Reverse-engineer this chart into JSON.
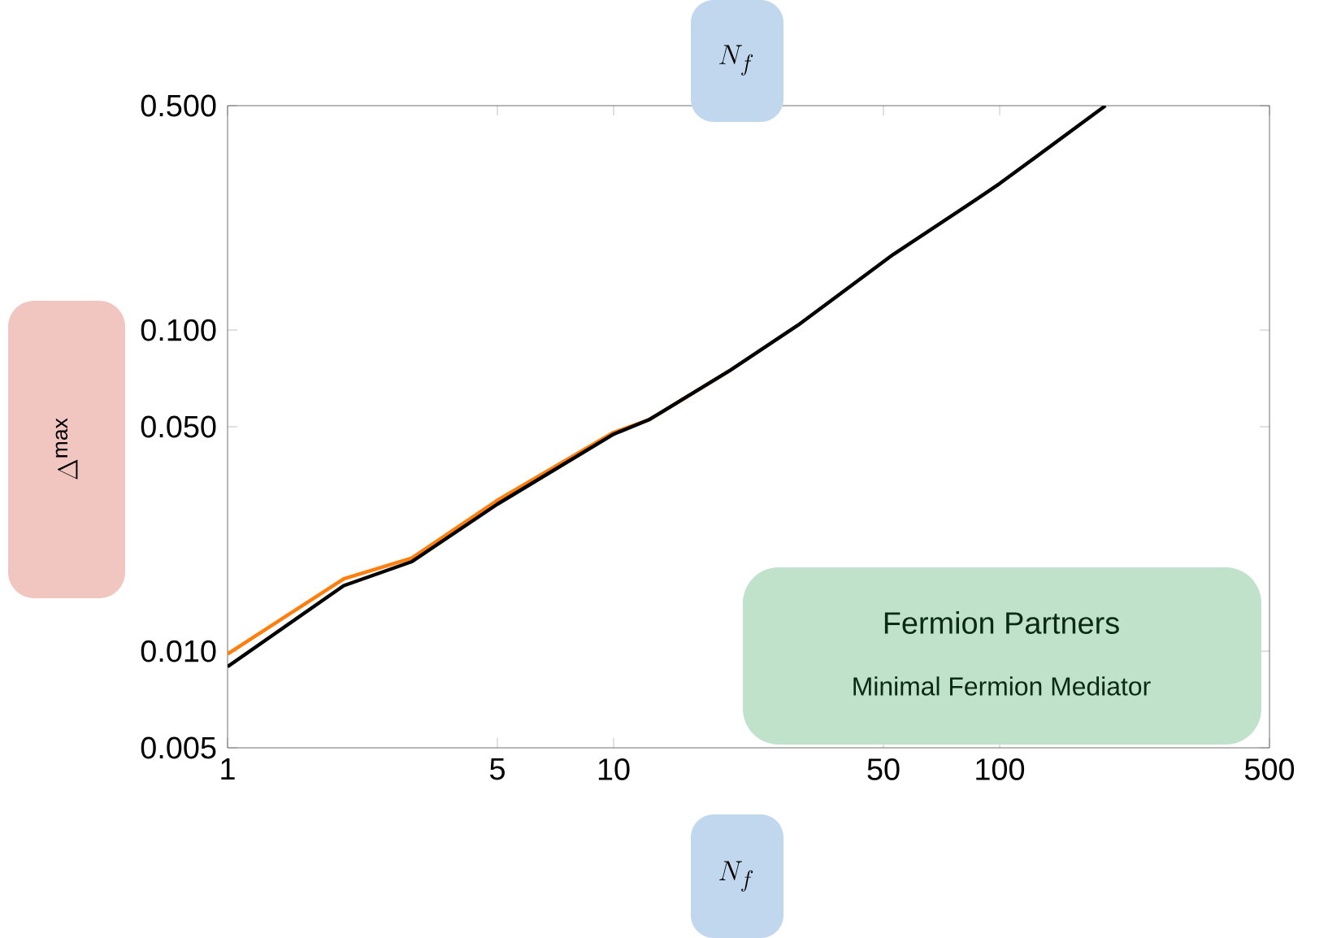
{
  "chart_data": {
    "type": "line",
    "xlabel": "N_f",
    "x2label": "N_f",
    "ylabel": "\\Delta^{\\mathrm{max}}",
    "log": "xy",
    "grid": false,
    "xlim": [
      1,
      500
    ],
    "ylim": [
      0.005,
      0.5
    ],
    "xticks": [
      1,
      5,
      10,
      50,
      100,
      500
    ],
    "yticks": [
      0.005,
      {
        "value": 0.01,
        "label": "0.010"
      },
      {
        "value": 0.05,
        "label": "0.050"
      },
      {
        "value": 0.1,
        "label": "0.100"
      },
      {
        "value": 0.5,
        "label": "0.500"
      }
    ],
    "annotations": [
      "Fermion Partners",
      "Minimal Fermion Mediator"
    ],
    "series": [
      {
        "color": "#ff7f0e",
        "x": [
          1,
          2,
          3,
          5,
          10,
          12.4,
          20
        ],
        "values": [
          0.0098,
          0.0168,
          0.0195,
          0.0295,
          0.048,
          0.0527,
          0.0748
        ]
      },
      {
        "color": "#000000",
        "x": [
          1,
          2,
          3,
          5,
          10,
          12.4,
          20,
          30,
          53,
          86.5,
          100,
          188
        ],
        "values": [
          0.00895,
          0.016,
          0.019,
          0.0287,
          0.0474,
          0.0527,
          0.0748,
          0.1035,
          0.172,
          0.254,
          0.286,
          0.5
        ]
      }
    ]
  }
}
